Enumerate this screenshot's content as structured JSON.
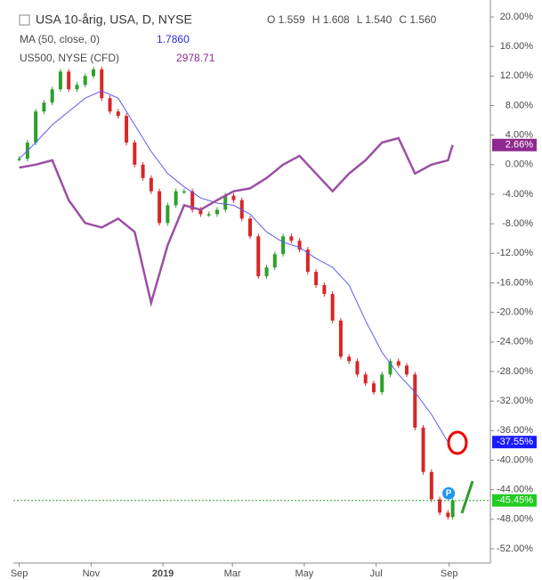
{
  "chart_data": {
    "type": "line",
    "header": {
      "title": "USA 10-årig, USA, D, NYSE",
      "ohlc": [
        "O 1.559",
        "H 1.608",
        "L 1.540",
        "C 1.560"
      ],
      "indicators": [
        {
          "name": "MA (50, close, 0)",
          "value": "1.7860",
          "color": "#2b2bd9"
        },
        {
          "name": "US500, NYSE (CFD)",
          "value": "2978.71",
          "color": "#8e2a8e"
        }
      ]
    },
    "xlim": [
      -5,
      400
    ],
    "xticks": [
      {
        "value": 0,
        "label": "Sep"
      },
      {
        "value": 61,
        "label": "Nov"
      },
      {
        "value": 122,
        "label": "2019"
      },
      {
        "value": 181,
        "label": "Mar"
      },
      {
        "value": 242,
        "label": "May"
      },
      {
        "value": 303,
        "label": "Jul"
      },
      {
        "value": 365,
        "label": "Sep"
      }
    ],
    "ylim": [
      -52,
      20
    ],
    "yticks": [
      {
        "value": 20,
        "label": "20.00%"
      },
      {
        "value": 16,
        "label": "16.00%"
      },
      {
        "value": 12,
        "label": "12.00%"
      },
      {
        "value": 8,
        "label": "8.00%"
      },
      {
        "value": 4,
        "label": "4.00%"
      },
      {
        "value": 0,
        "label": "0.00%"
      },
      {
        "value": -4,
        "label": "-4.00%"
      },
      {
        "value": -8,
        "label": "-8.00%"
      },
      {
        "value": -12,
        "label": "-12.00%"
      },
      {
        "value": -16,
        "label": "-16.00%"
      },
      {
        "value": -20,
        "label": "-20.00%"
      },
      {
        "value": -24,
        "label": "-24.00%"
      },
      {
        "value": -28,
        "label": "-28.00%"
      },
      {
        "value": -32,
        "label": "-32.00%"
      },
      {
        "value": -36,
        "label": "-36.00%"
      },
      {
        "value": -40,
        "label": "-40.00%"
      },
      {
        "value": -44,
        "label": "-44.00%"
      },
      {
        "value": -48,
        "label": "-48.00%"
      },
      {
        "value": -52,
        "label": "-52.00%"
      }
    ],
    "series": [
      {
        "name": "USA 10-årig",
        "style": "candles",
        "color": "#2ca02c",
        "down_color": "#d62728",
        "label_color": "#22cc22",
        "x": [
          0,
          7,
          14,
          21,
          28,
          35,
          42,
          49,
          56,
          63,
          70,
          77,
          84,
          91,
          98,
          105,
          112,
          119,
          126,
          133,
          140,
          147,
          154,
          161,
          168,
          175,
          182,
          189,
          196,
          203,
          210,
          217,
          224,
          231,
          238,
          245,
          252,
          259,
          266,
          273,
          280,
          287,
          294,
          301,
          308,
          315,
          322,
          329,
          336,
          343,
          350,
          357,
          364,
          368
        ],
        "values": [
          0.8,
          3.0,
          7.2,
          8.4,
          10.2,
          12.6,
          10.2,
          10.8,
          12.0,
          12.9,
          9.0,
          7.2,
          6.6,
          3.0,
          0.0,
          -1.8,
          -3.6,
          -7.9,
          -5.5,
          -3.6,
          -3.6,
          -6.1,
          -6.7,
          -6.7,
          -6.1,
          -4.2,
          -4.8,
          -7.3,
          -9.7,
          -15.1,
          -13.9,
          -12.1,
          -9.7,
          -10.3,
          -11.5,
          -14.5,
          -16.3,
          -17.5,
          -21.1,
          -26.0,
          -26.6,
          -28.4,
          -29.6,
          -30.8,
          -28.4,
          -26.6,
          -27.2,
          -28.4,
          -35.6,
          -41.6,
          -45.3,
          -47.1,
          -47.7,
          -45.45
        ],
        "last_label": "-45.45%"
      },
      {
        "name": "MA (50, close, 0)",
        "style": "line",
        "color": "#5b5bf0",
        "label_color": "#1a1aff",
        "x": [
          0,
          14,
          28,
          42,
          56,
          70,
          84,
          98,
          112,
          126,
          140,
          154,
          168,
          182,
          196,
          210,
          224,
          238,
          252,
          266,
          280,
          294,
          308,
          322,
          336,
          350,
          364
        ],
        "values": [
          0.8,
          3.0,
          5.4,
          7.2,
          9.0,
          10.0,
          9.0,
          5.4,
          1.8,
          -1.2,
          -3.0,
          -4.5,
          -5.2,
          -5.5,
          -6.7,
          -9.1,
          -10.5,
          -11.2,
          -12.7,
          -13.9,
          -16.3,
          -21.1,
          -25.4,
          -28.4,
          -30.8,
          -33.8,
          -37.55
        ],
        "last_label": "-37.55%"
      },
      {
        "name": "US500, NYSE (CFD)",
        "style": "line",
        "color": "#9c4fa5",
        "label_color": "#8e2a8e",
        "x": [
          0,
          14,
          28,
          42,
          56,
          70,
          84,
          98,
          112,
          126,
          140,
          154,
          168,
          182,
          196,
          210,
          224,
          238,
          252,
          266,
          280,
          294,
          308,
          322,
          336,
          350,
          364,
          368
        ],
        "values": [
          -0.4,
          0.0,
          0.6,
          -4.8,
          -7.9,
          -8.5,
          -7.3,
          -9.1,
          -18.7,
          -10.9,
          -5.5,
          -6.1,
          -4.8,
          -3.6,
          -3.2,
          -1.8,
          0.0,
          1.2,
          -1.2,
          -3.6,
          -1.2,
          0.6,
          3.0,
          3.6,
          -1.2,
          0.0,
          0.6,
          2.66
        ],
        "last_label": "2.66%"
      }
    ],
    "marker": "P"
  }
}
